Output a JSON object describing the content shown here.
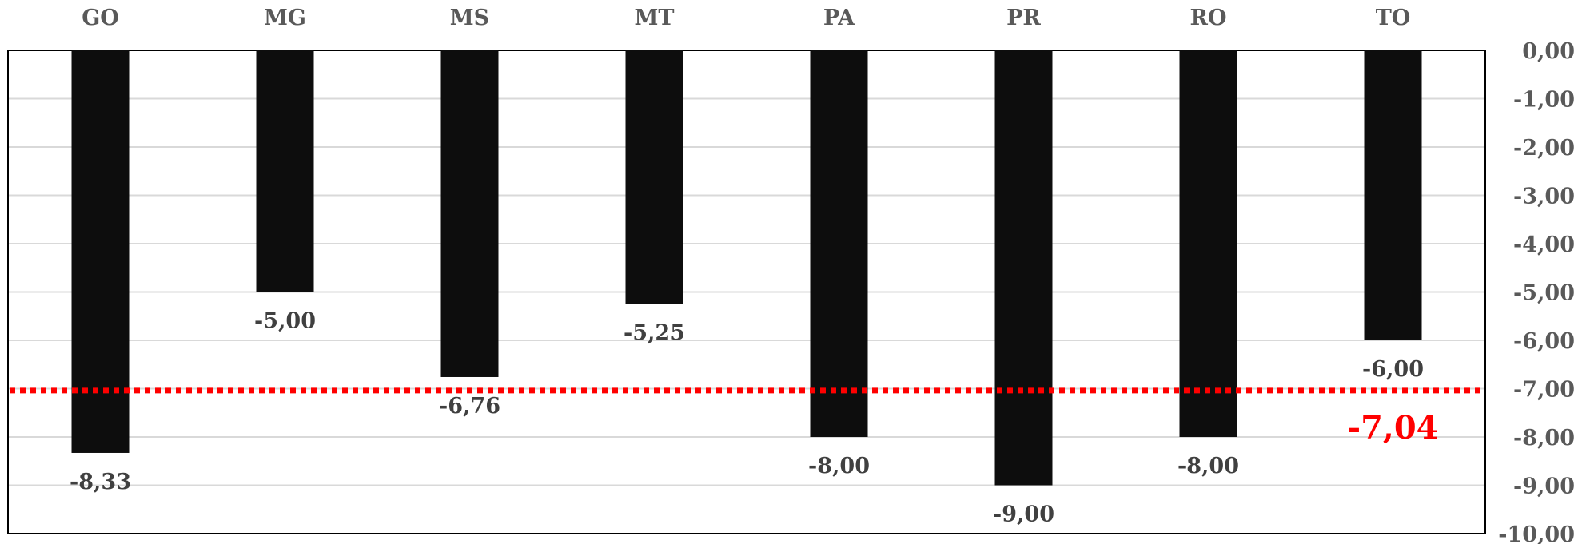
{
  "chart_data": {
    "type": "bar",
    "categories": [
      "GO",
      "MG",
      "MS",
      "MT",
      "PA",
      "PR",
      "RO",
      "TO"
    ],
    "values": [
      -8.33,
      -5.0,
      -6.76,
      -5.25,
      -8.0,
      -9.0,
      -8.0,
      -6.0
    ],
    "data_labels": [
      "-8,33",
      "-5,00",
      "-6,76",
      "-5,25",
      "-8,00",
      "-9,00",
      "-8,00",
      "-6,00"
    ],
    "ylim": [
      -10,
      0
    ],
    "y_ticks": [
      0,
      -1,
      -2,
      -3,
      -4,
      -5,
      -6,
      -7,
      -8,
      -9,
      -10
    ],
    "y_tick_labels": [
      "0,00",
      "-1,00",
      "-2,00",
      "-3,00",
      "-4,00",
      "-5,00",
      "-6,00",
      "-7,00",
      "-8,00",
      "-9,00",
      "-10,00"
    ],
    "y_axis_position": "right",
    "x_axis_position": "top",
    "grid": true,
    "average": {
      "value": -7.04,
      "label": "-7,04"
    },
    "colors": {
      "bar": "#0d0d0d",
      "average_line": "#ff0000",
      "grid": "#d9d9d9",
      "text": "#595959"
    }
  }
}
